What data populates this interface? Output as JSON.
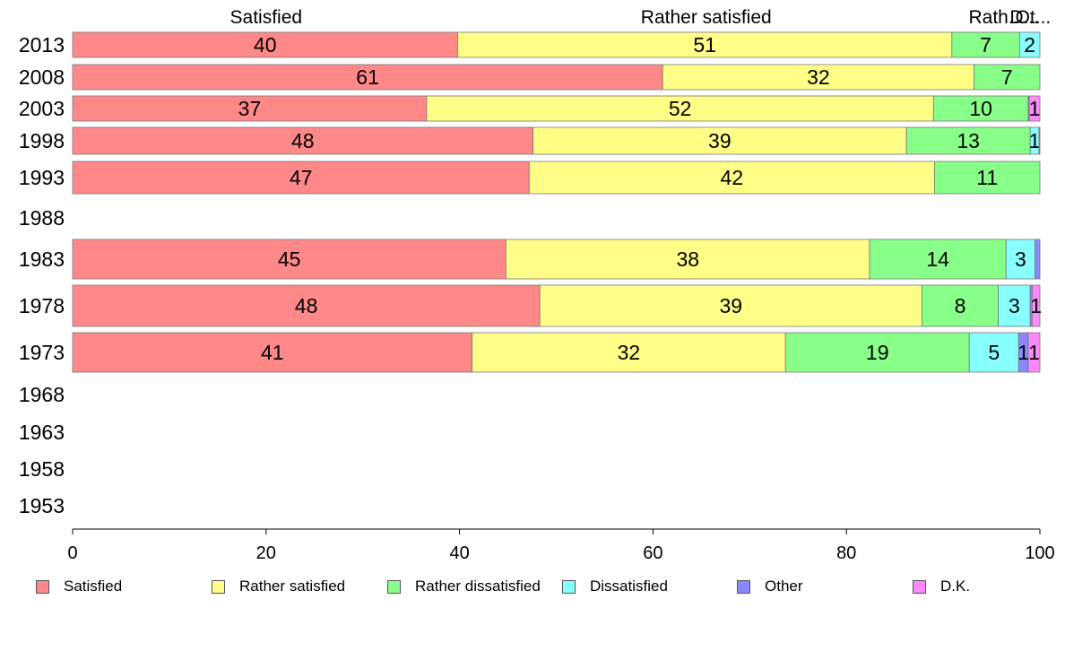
{
  "chart_data": {
    "type": "bar",
    "orientation": "horizontal",
    "stacked": true,
    "categories": [
      "2013",
      "2008",
      "2003",
      "1998",
      "1993",
      "1988",
      "1983",
      "1978",
      "1973",
      "1968",
      "1963",
      "1958",
      "1953"
    ],
    "series": [
      {
        "name": "Satisfied",
        "color": "#ff8888",
        "values": [
          39.8,
          61,
          36.6,
          47.6,
          47.2,
          null,
          44.8,
          48.3,
          41.3,
          null,
          null,
          null,
          null
        ]
      },
      {
        "name": "Rather satisfied",
        "color": "#ffff88",
        "values": [
          51.1,
          32.2,
          52.4,
          38.6,
          41.9,
          null,
          37.6,
          39.5,
          32.4,
          null,
          null,
          null,
          null
        ]
      },
      {
        "name": "Rather dissatisfied",
        "color": "#88ff88",
        "values": [
          7,
          6.8,
          9.8,
          12.8,
          10.9,
          null,
          14.1,
          7.9,
          19,
          null,
          null,
          null,
          null
        ]
      },
      {
        "name": "Dissatisfied",
        "color": "#88ffff",
        "values": [
          2.1,
          0,
          0,
          0.9,
          0,
          null,
          3,
          3.3,
          5.1,
          null,
          null,
          null,
          null
        ]
      },
      {
        "name": "Other",
        "color": "#8888ff",
        "values": [
          0,
          0,
          0.1,
          0.1,
          0,
          null,
          0.5,
          0.2,
          1,
          null,
          null,
          null,
          null
        ]
      },
      {
        "name": "D.K.",
        "color": "#ff88ff",
        "values": [
          0,
          0,
          1.1,
          0,
          0,
          null,
          0,
          0.8,
          1.2,
          null,
          null,
          null,
          null
        ]
      }
    ],
    "data_labels": [
      [
        "40",
        "51",
        "7",
        "2",
        "",
        ""
      ],
      [
        "61",
        "32",
        "7",
        "",
        "",
        ""
      ],
      [
        "37",
        "52",
        "10",
        "",
        "",
        "1"
      ],
      [
        "48",
        "39",
        "13",
        "1",
        "",
        ""
      ],
      [
        "47",
        "42",
        "11",
        "",
        "",
        ""
      ],
      [
        "",
        "",
        "",
        "",
        "",
        ""
      ],
      [
        "45",
        "38",
        "14",
        "3",
        "",
        ""
      ],
      [
        "48",
        "39",
        "8",
        "3",
        "",
        "1"
      ],
      [
        "41",
        "32",
        "19",
        "5",
        "1",
        "1"
      ],
      [
        "",
        "",
        "",
        "",
        "",
        ""
      ],
      [
        "",
        "",
        "",
        "",
        "",
        ""
      ],
      [
        "",
        "",
        "",
        "",
        "",
        ""
      ],
      [
        "",
        "",
        "",
        "",
        "",
        ""
      ]
    ],
    "top_labels": [
      {
        "text": "Satisfied",
        "at": 20
      },
      {
        "text": "Rather satisfied",
        "at": 65.5
      },
      {
        "text": "Rath...",
        "at": 95.5
      },
      {
        "text": "D...",
        "at": 98.4
      },
      {
        "text": "Ot...",
        "at": 99.3
      }
    ],
    "xlim": [
      0,
      100
    ],
    "xticks": [
      "0",
      "20",
      "40",
      "60",
      "80",
      "100"
    ],
    "grid": false,
    "legend_position": "bottom"
  }
}
